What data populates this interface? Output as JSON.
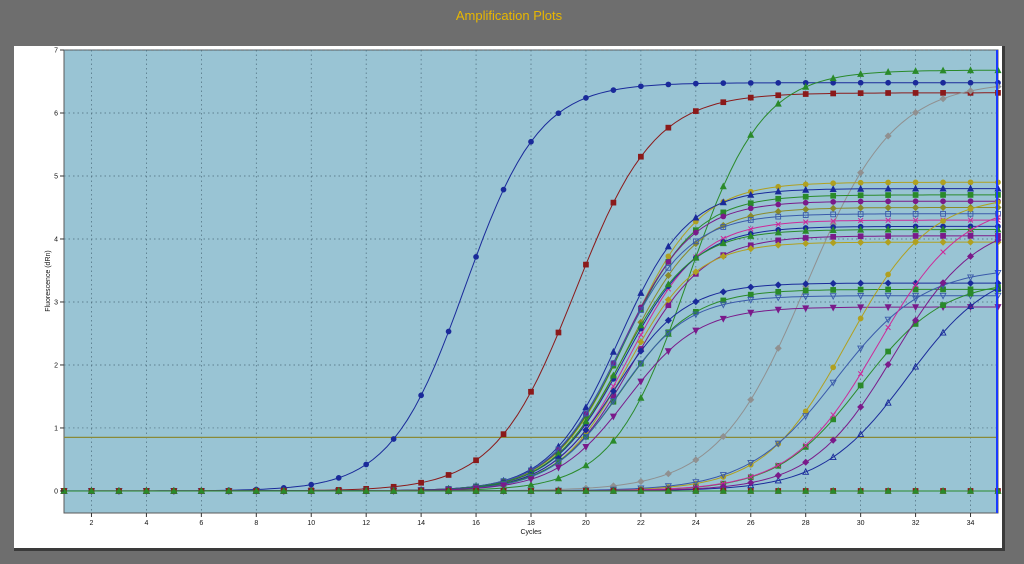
{
  "window": {
    "title": "Amplification Plots"
  },
  "colors": {
    "window_bg": "#6e6e6e",
    "panel_bg": "#ffffff",
    "plot_bg": "#99c4d4",
    "title": "#e8b700",
    "threshold": "#8a8a38"
  },
  "chart_data": {
    "type": "line",
    "title": "Amplification Plots",
    "xlabel": "Cycles",
    "ylabel": "Fluorescence (dRn)",
    "xlim": [
      1,
      35
    ],
    "ylim": [
      -0.35,
      7
    ],
    "xticks": [
      2,
      4,
      6,
      8,
      10,
      12,
      14,
      16,
      18,
      20,
      22,
      24,
      26,
      28,
      30,
      32,
      34
    ],
    "yticks": [
      0,
      1,
      2,
      3,
      4,
      5,
      6,
      7
    ],
    "grid": true,
    "legend": "none",
    "threshold": 0.85,
    "series_models": [
      {
        "color": "#1a2a9a",
        "marker": "circle",
        "filled": true,
        "plateau": 6.48,
        "midpoint": 15.6,
        "slope": 1.35
      },
      {
        "color": "#8b1a1a",
        "marker": "square",
        "filled": true,
        "plateau": 6.32,
        "midpoint": 19.6,
        "slope": 1.45
      },
      {
        "color": "#2a8a2a",
        "marker": "triangle",
        "filled": true,
        "plateau": 6.68,
        "midpoint": 23.7,
        "slope": 1.35
      },
      {
        "color": "#909090",
        "marker": "diamond",
        "filled": true,
        "plateau": 6.5,
        "midpoint": 28.0,
        "slope": 1.6
      },
      {
        "color": "#b0a020",
        "marker": "circle",
        "filled": true,
        "plateau": 4.9,
        "midpoint": 21.5,
        "slope": 1.3
      },
      {
        "color": "#1a2a9a",
        "marker": "triangle",
        "filled": true,
        "plateau": 4.8,
        "midpoint": 21.2,
        "slope": 1.25
      },
      {
        "color": "#2a8a2a",
        "marker": "square",
        "filled": true,
        "plateau": 4.7,
        "midpoint": 21.4,
        "slope": 1.3
      },
      {
        "color": "#7a1a8a",
        "marker": "circle",
        "filled": true,
        "plateau": 4.6,
        "midpoint": 21.3,
        "slope": 1.28
      },
      {
        "color": "#8a8a2a",
        "marker": "diamond",
        "filled": true,
        "plateau": 4.5,
        "midpoint": 21.5,
        "slope": 1.3
      },
      {
        "color": "#3a5aaa",
        "marker": "square",
        "filled": false,
        "plateau": 4.4,
        "midpoint": 21.2,
        "slope": 1.27
      },
      {
        "color": "#cc2a9a",
        "marker": "x",
        "filled": false,
        "plateau": 4.3,
        "midpoint": 21.6,
        "slope": 1.3
      },
      {
        "color": "#1a2a9a",
        "marker": "circle",
        "filled": true,
        "plateau": 4.2,
        "midpoint": 21.4,
        "slope": 1.3
      },
      {
        "color": "#2a8a2a",
        "marker": "triangle",
        "filled": true,
        "plateau": 4.15,
        "midpoint": 21.3,
        "slope": 1.28
      },
      {
        "color": "#7a1a8a",
        "marker": "square",
        "filled": true,
        "plateau": 4.05,
        "midpoint": 21.7,
        "slope": 1.32
      },
      {
        "color": "#b0a020",
        "marker": "diamond",
        "filled": true,
        "plateau": 3.95,
        "midpoint": 21.5,
        "slope": 1.25
      },
      {
        "color": "#1a2a9a",
        "marker": "diamond",
        "filled": true,
        "plateau": 3.3,
        "midpoint": 21.1,
        "slope": 1.25
      },
      {
        "color": "#2a8a2a",
        "marker": "square",
        "filled": true,
        "plateau": 3.2,
        "midpoint": 21.3,
        "slope": 1.3
      },
      {
        "color": "#3a5aaa",
        "marker": "triangle-down",
        "filled": false,
        "plateau": 3.1,
        "midpoint": 21.2,
        "slope": 1.25
      },
      {
        "color": "#7a1a8a",
        "marker": "triangle-down",
        "filled": true,
        "plateau": 2.92,
        "midpoint": 21.5,
        "slope": 1.3
      },
      {
        "color": "#b0a020",
        "marker": "circle",
        "filled": true,
        "plateau": 4.7,
        "midpoint": 29.5,
        "slope": 1.5
      },
      {
        "color": "#3a5aaa",
        "marker": "triangle-down",
        "filled": false,
        "plateau": 3.55,
        "midpoint": 29.1,
        "slope": 1.6
      },
      {
        "color": "#2a8a2a",
        "marker": "square",
        "filled": true,
        "plateau": 3.35,
        "midpoint": 30.0,
        "slope": 1.5
      },
      {
        "color": "#cc2a9a",
        "marker": "x",
        "filled": false,
        "plateau": 4.6,
        "midpoint": 30.6,
        "slope": 1.55
      },
      {
        "color": "#1a2a9a",
        "marker": "triangle",
        "filled": false,
        "plateau": 3.6,
        "midpoint": 31.7,
        "slope": 1.55
      },
      {
        "color": "#7a1a8a",
        "marker": "diamond",
        "filled": true,
        "plateau": 4.3,
        "midpoint": 31.2,
        "slope": 1.5
      },
      {
        "color": "#8b1a1a",
        "marker": "square",
        "filled": true,
        "plateau": 0,
        "midpoint": 40,
        "slope": 1.0
      },
      {
        "color": "#2a8a2a",
        "marker": "triangle",
        "filled": true,
        "plateau": 0,
        "midpoint": 40,
        "slope": 1.0
      }
    ]
  }
}
